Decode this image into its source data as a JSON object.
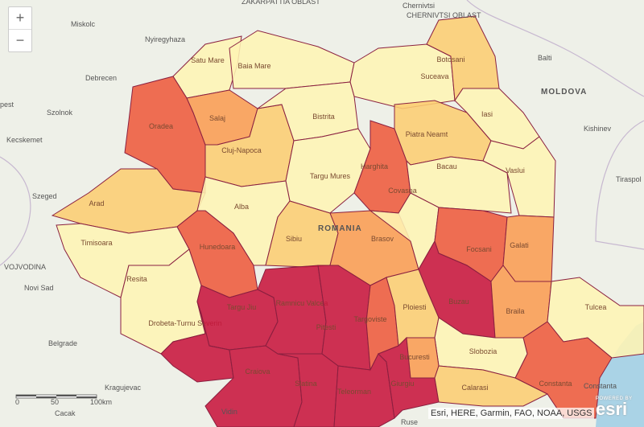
{
  "zoom": {
    "in_label": "+",
    "out_label": "−"
  },
  "attribution": "Esri, HERE, Garmin, FAO, NOAA, USGS",
  "logo": {
    "powered_by": "POWERED BY",
    "brand": "esri"
  },
  "scale_bar": {
    "labels": [
      "0",
      "50",
      "100km"
    ]
  },
  "colors": {
    "class1": "#fef4b4",
    "class2": "#fccd72",
    "class3": "#fa9c52",
    "class4": "#ee5a3c",
    "class5": "#c8143c",
    "water": "#aad3e6",
    "land": "#eef0e8"
  },
  "places": [
    {
      "name": "ZAKARPATTIA OBLAST",
      "kind": "region"
    },
    {
      "name": "CHERNIVTSI OBLAST",
      "kind": "region"
    },
    {
      "name": "Chernivtsi"
    },
    {
      "name": "Miskolc"
    },
    {
      "name": "Nyiregyhaza"
    },
    {
      "name": "Debrecen"
    },
    {
      "name": "pest"
    },
    {
      "name": "Szolnok"
    },
    {
      "name": "Kecskemet"
    },
    {
      "name": "Szeged"
    },
    {
      "name": "VOJVODINA",
      "kind": "region"
    },
    {
      "name": "Novi Sad"
    },
    {
      "name": "Belgrade"
    },
    {
      "name": "Kragujevac"
    },
    {
      "name": "Cacak"
    },
    {
      "name": "Vidin"
    },
    {
      "name": "Ruse"
    },
    {
      "name": "Balti"
    },
    {
      "name": "MOLDOVA",
      "kind": "country"
    },
    {
      "name": "Kishinev"
    },
    {
      "name": "Tiraspol"
    },
    {
      "name": "Constanta"
    },
    {
      "name": "ROMANIA",
      "kind": "country"
    }
  ],
  "counties": [
    {
      "name": "Satu Mare",
      "cls": 1
    },
    {
      "name": "Baia Mare",
      "cls": 1
    },
    {
      "name": "Suceava",
      "cls": 1
    },
    {
      "name": "Botosani",
      "cls": 2
    },
    {
      "name": "Oradea",
      "cls": 4
    },
    {
      "name": "Salaj",
      "cls": 3
    },
    {
      "name": "Cluj-Napoca",
      "cls": 2
    },
    {
      "name": "Bistrita",
      "cls": 1
    },
    {
      "name": "Targu Mures",
      "cls": 1
    },
    {
      "name": "Harghita",
      "cls": 4
    },
    {
      "name": "Piatra Neamt",
      "cls": 2
    },
    {
      "name": "Iasi",
      "cls": 1
    },
    {
      "name": "Vaslui",
      "cls": 1
    },
    {
      "name": "Bacau",
      "cls": 1
    },
    {
      "name": "Arad",
      "cls": 2
    },
    {
      "name": "Alba",
      "cls": 1
    },
    {
      "name": "Hunedoara",
      "cls": 4
    },
    {
      "name": "Timisoara",
      "cls": 1
    },
    {
      "name": "Resita",
      "cls": 1
    },
    {
      "name": "Sibiu",
      "cls": 2
    },
    {
      "name": "Brasov",
      "cls": 3
    },
    {
      "name": "Covasna",
      "cls": 1
    },
    {
      "name": "Focsani",
      "cls": 4
    },
    {
      "name": "Galati",
      "cls": 3
    },
    {
      "name": "Buzau",
      "cls": 5
    },
    {
      "name": "Braila",
      "cls": 3
    },
    {
      "name": "Tulcea",
      "cls": 1
    },
    {
      "name": "Constanta",
      "cls": 4
    },
    {
      "name": "Drobeta-Turnu Severin",
      "cls": 5
    },
    {
      "name": "Targu Jiu",
      "cls": 5
    },
    {
      "name": "Ramnicu Valcea",
      "cls": 5
    },
    {
      "name": "Pitesti",
      "cls": 5
    },
    {
      "name": "Targoviste",
      "cls": 4
    },
    {
      "name": "Ploiesti",
      "cls": 2
    },
    {
      "name": "Slobozia",
      "cls": 1
    },
    {
      "name": "Craiova",
      "cls": 5
    },
    {
      "name": "Slatina",
      "cls": 5
    },
    {
      "name": "Teleorman",
      "cls": 5
    },
    {
      "name": "Giurgiu",
      "cls": 5
    },
    {
      "name": "Bucuresti",
      "cls": 3
    },
    {
      "name": "Calarasi",
      "cls": 2
    }
  ]
}
